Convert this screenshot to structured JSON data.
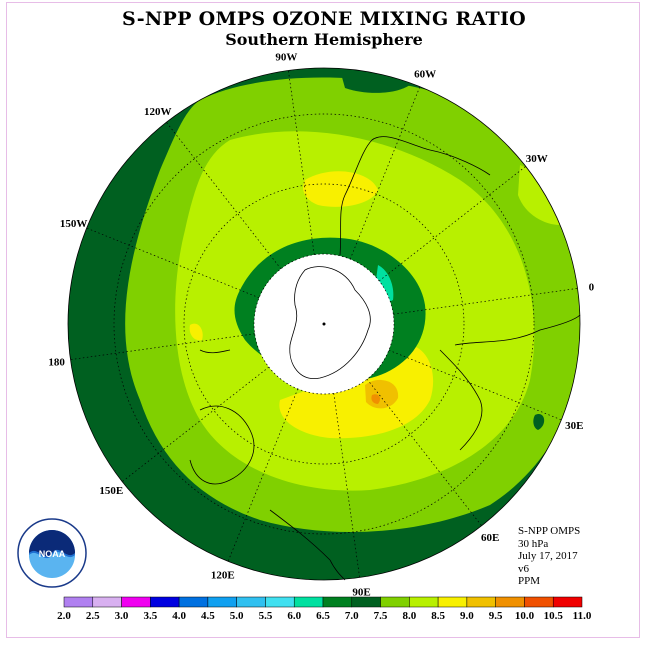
{
  "title": "S-NPP OMPS OZONE MIXING RATIO",
  "subtitle": "Southern Hemisphere",
  "longitude_labels": [
    {
      "text": "90W",
      "lon": -90
    },
    {
      "text": "60W",
      "lon": -60
    },
    {
      "text": "30W",
      "lon": -30
    },
    {
      "text": "0",
      "lon": 0
    },
    {
      "text": "30E",
      "lon": 30
    },
    {
      "text": "60E",
      "lon": 60
    },
    {
      "text": "90E",
      "lon": 90
    },
    {
      "text": "120E",
      "lon": 120
    },
    {
      "text": "150E",
      "lon": 150
    },
    {
      "text": "180",
      "lon": 180
    },
    {
      "text": "150W",
      "lon": -150
    },
    {
      "text": "120W",
      "lon": -120
    }
  ],
  "info": {
    "instrument": "S-NPP OMPS",
    "level": "30 hPa",
    "date": "July 17, 2017",
    "version": "v6",
    "units": "PPM"
  },
  "logo": {
    "text": "NOAA",
    "icon": "noaa-logo"
  },
  "colorbar": {
    "labels": [
      "2.0",
      "2.5",
      "3.0",
      "3.5",
      "4.0",
      "4.5",
      "5.0",
      "5.5",
      "6.0",
      "6.5",
      "7.0",
      "7.5",
      "8.0",
      "8.5",
      "9.0",
      "9.5",
      "10.0",
      "10.5",
      "11.0"
    ],
    "colors": [
      "#b080f0",
      "#d8b0f0",
      "#f000f0",
      "#0000e0",
      "#0070e0",
      "#10a0f0",
      "#30c0f0",
      "#40e0f0",
      "#00e0a0",
      "#008020",
      "#006020",
      "#80d000",
      "#b8f000",
      "#f8f000",
      "#f0c000",
      "#f09000",
      "#f05000",
      "#f00000",
      "#805030"
    ]
  }
}
